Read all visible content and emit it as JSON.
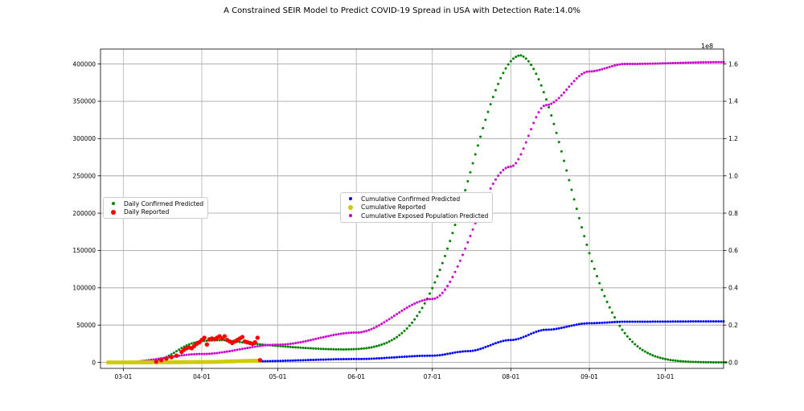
{
  "chart_data": {
    "type": "scatter",
    "title": "A Constrained SEIR Model to Predict COVID-19 Spread in USA with Detection Rate:14.0%",
    "x_ticks": [
      "03-01",
      "04-01",
      "05-01",
      "06-01",
      "07-01",
      "08-01",
      "09-01",
      "10-01"
    ],
    "x_range": [
      "2020-02-21",
      "2020-10-24"
    ],
    "y_left": {
      "range": [
        -8000,
        420000
      ],
      "ticks": [
        "0",
        "50000",
        "100000",
        "150000",
        "200000",
        "250000",
        "300000",
        "350000",
        "400000"
      ]
    },
    "y_right": {
      "range": [
        -0.032,
        1.68
      ],
      "ticks": [
        "0.0",
        "0.2",
        "0.4",
        "0.6",
        "0.8",
        "1.0",
        "1.2",
        "1.4",
        "1.6"
      ],
      "offset_label": "1e8"
    },
    "grid": true,
    "legends": [
      {
        "placement": "center-left",
        "items": [
          "Daily Confirmed Predicted",
          "Daily Reported"
        ]
      },
      {
        "placement": "center",
        "items": [
          "Cumulative Confirmed Predicted",
          "Cumulative Reported",
          "Cumulative Exposed Population Predicted"
        ]
      }
    ],
    "series": [
      {
        "name": "Daily Confirmed Predicted",
        "axis": "left",
        "color": "#008000",
        "x_start": "2020-02-24",
        "step_days": 1,
        "count": 245,
        "shape": "Rises from 0 to about 30000 in early April, dips to about 20000 in mid May, peaks near 405000 on Aug 5, then falls to 0 by early October"
      },
      {
        "name": "Daily Reported",
        "axis": "left",
        "color": "#ff0000",
        "x": [
          "03-14",
          "03-16",
          "03-18",
          "03-20",
          "03-22",
          "03-24",
          "03-25",
          "03-26",
          "03-27",
          "03-28",
          "03-29",
          "03-30",
          "03-31",
          "04-01",
          "04-02",
          "04-03",
          "04-04",
          "04-05",
          "04-06",
          "04-07",
          "04-08",
          "04-09",
          "04-10",
          "04-11",
          "04-12",
          "04-13",
          "04-14",
          "04-15",
          "04-16",
          "04-17",
          "04-18",
          "04-19",
          "04-20",
          "04-21",
          "04-22",
          "04-23",
          "04-24"
        ],
        "y": [
          1000,
          3000,
          5000,
          7000,
          9000,
          14000,
          17000,
          19000,
          20000,
          19000,
          22000,
          25000,
          27000,
          30000,
          33000,
          24000,
          31000,
          32000,
          31000,
          33000,
          35000,
          32000,
          35000,
          30000,
          28000,
          26000,
          28000,
          30000,
          32000,
          34000,
          28000,
          27000,
          26000,
          25000,
          27000,
          33000,
          3000
        ]
      },
      {
        "name": "Cumulative Confirmed Predicted",
        "axis": "right",
        "color": "#0000ff",
        "x_start": "2020-04-21",
        "step_days": 1,
        "keypoints": [
          [
            "04-21",
            0.006
          ],
          [
            "06-01",
            0.018
          ],
          [
            "07-01",
            0.036
          ],
          [
            "07-15",
            0.06
          ],
          [
            "08-01",
            0.12
          ],
          [
            "08-15",
            0.175
          ],
          [
            "09-01",
            0.21
          ],
          [
            "09-15",
            0.218
          ],
          [
            "10-24",
            0.22
          ]
        ]
      },
      {
        "name": "Cumulative Reported",
        "axis": "right",
        "color": "#cccc00",
        "x_start": "2020-02-24",
        "x_end": "2020-04-24",
        "keypoints": [
          [
            "02-24",
            0.0
          ],
          [
            "03-15",
            0.0005
          ],
          [
            "04-01",
            0.002
          ],
          [
            "04-24",
            0.009
          ]
        ]
      },
      {
        "name": "Cumulative Exposed Population Predicted",
        "axis": "right",
        "color": "#cc00cc",
        "x_start": "2020-02-24",
        "step_days": 1,
        "keypoints": [
          [
            "03-01",
            0.001
          ],
          [
            "04-01",
            0.045
          ],
          [
            "05-01",
            0.095
          ],
          [
            "06-01",
            0.16
          ],
          [
            "07-01",
            0.34
          ],
          [
            "08-01",
            1.05
          ],
          [
            "08-15",
            1.38
          ],
          [
            "09-01",
            1.56
          ],
          [
            "09-15",
            1.6
          ],
          [
            "10-24",
            1.61
          ]
        ]
      }
    ]
  }
}
